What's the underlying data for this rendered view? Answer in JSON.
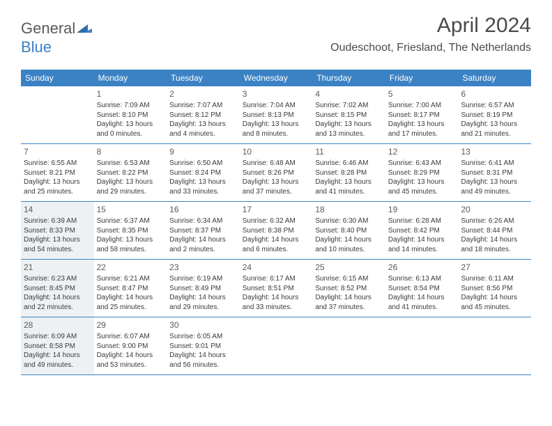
{
  "brand": {
    "part1": "General",
    "part2": "Blue"
  },
  "title": "April 2024",
  "location": "Oudeschoot, Friesland, The Netherlands",
  "colors": {
    "header_bg": "#3b82c4",
    "header_text": "#ffffff",
    "body_text": "#3a3a3a",
    "divider": "#3b82c4",
    "shaded_bg": "#eef1f3",
    "page_bg": "#ffffff",
    "title_text": "#4a4a4a"
  },
  "typography": {
    "title_fontsize": 30,
    "location_fontsize": 16,
    "header_fontsize": 12,
    "daynum_fontsize": 12,
    "body_fontsize": 10
  },
  "day_headers": [
    "Sunday",
    "Monday",
    "Tuesday",
    "Wednesday",
    "Thursday",
    "Friday",
    "Saturday"
  ],
  "weeks": [
    [
      {
        "num": "",
        "sunrise": "",
        "sunset": "",
        "daylight1": "",
        "daylight2": "",
        "shaded": false
      },
      {
        "num": "1",
        "sunrise": "Sunrise: 7:09 AM",
        "sunset": "Sunset: 8:10 PM",
        "daylight1": "Daylight: 13 hours",
        "daylight2": "and 0 minutes.",
        "shaded": false
      },
      {
        "num": "2",
        "sunrise": "Sunrise: 7:07 AM",
        "sunset": "Sunset: 8:12 PM",
        "daylight1": "Daylight: 13 hours",
        "daylight2": "and 4 minutes.",
        "shaded": false
      },
      {
        "num": "3",
        "sunrise": "Sunrise: 7:04 AM",
        "sunset": "Sunset: 8:13 PM",
        "daylight1": "Daylight: 13 hours",
        "daylight2": "and 8 minutes.",
        "shaded": false
      },
      {
        "num": "4",
        "sunrise": "Sunrise: 7:02 AM",
        "sunset": "Sunset: 8:15 PM",
        "daylight1": "Daylight: 13 hours",
        "daylight2": "and 13 minutes.",
        "shaded": false
      },
      {
        "num": "5",
        "sunrise": "Sunrise: 7:00 AM",
        "sunset": "Sunset: 8:17 PM",
        "daylight1": "Daylight: 13 hours",
        "daylight2": "and 17 minutes.",
        "shaded": false
      },
      {
        "num": "6",
        "sunrise": "Sunrise: 6:57 AM",
        "sunset": "Sunset: 8:19 PM",
        "daylight1": "Daylight: 13 hours",
        "daylight2": "and 21 minutes.",
        "shaded": false
      }
    ],
    [
      {
        "num": "7",
        "sunrise": "Sunrise: 6:55 AM",
        "sunset": "Sunset: 8:21 PM",
        "daylight1": "Daylight: 13 hours",
        "daylight2": "and 25 minutes.",
        "shaded": false
      },
      {
        "num": "8",
        "sunrise": "Sunrise: 6:53 AM",
        "sunset": "Sunset: 8:22 PM",
        "daylight1": "Daylight: 13 hours",
        "daylight2": "and 29 minutes.",
        "shaded": false
      },
      {
        "num": "9",
        "sunrise": "Sunrise: 6:50 AM",
        "sunset": "Sunset: 8:24 PM",
        "daylight1": "Daylight: 13 hours",
        "daylight2": "and 33 minutes.",
        "shaded": false
      },
      {
        "num": "10",
        "sunrise": "Sunrise: 6:48 AM",
        "sunset": "Sunset: 8:26 PM",
        "daylight1": "Daylight: 13 hours",
        "daylight2": "and 37 minutes.",
        "shaded": false
      },
      {
        "num": "11",
        "sunrise": "Sunrise: 6:46 AM",
        "sunset": "Sunset: 8:28 PM",
        "daylight1": "Daylight: 13 hours",
        "daylight2": "and 41 minutes.",
        "shaded": false
      },
      {
        "num": "12",
        "sunrise": "Sunrise: 6:43 AM",
        "sunset": "Sunset: 8:29 PM",
        "daylight1": "Daylight: 13 hours",
        "daylight2": "and 45 minutes.",
        "shaded": false
      },
      {
        "num": "13",
        "sunrise": "Sunrise: 6:41 AM",
        "sunset": "Sunset: 8:31 PM",
        "daylight1": "Daylight: 13 hours",
        "daylight2": "and 49 minutes.",
        "shaded": false
      }
    ],
    [
      {
        "num": "14",
        "sunrise": "Sunrise: 6:39 AM",
        "sunset": "Sunset: 8:33 PM",
        "daylight1": "Daylight: 13 hours",
        "daylight2": "and 54 minutes.",
        "shaded": true
      },
      {
        "num": "15",
        "sunrise": "Sunrise: 6:37 AM",
        "sunset": "Sunset: 8:35 PM",
        "daylight1": "Daylight: 13 hours",
        "daylight2": "and 58 minutes.",
        "shaded": false
      },
      {
        "num": "16",
        "sunrise": "Sunrise: 6:34 AM",
        "sunset": "Sunset: 8:37 PM",
        "daylight1": "Daylight: 14 hours",
        "daylight2": "and 2 minutes.",
        "shaded": false
      },
      {
        "num": "17",
        "sunrise": "Sunrise: 6:32 AM",
        "sunset": "Sunset: 8:38 PM",
        "daylight1": "Daylight: 14 hours",
        "daylight2": "and 6 minutes.",
        "shaded": false
      },
      {
        "num": "18",
        "sunrise": "Sunrise: 6:30 AM",
        "sunset": "Sunset: 8:40 PM",
        "daylight1": "Daylight: 14 hours",
        "daylight2": "and 10 minutes.",
        "shaded": false
      },
      {
        "num": "19",
        "sunrise": "Sunrise: 6:28 AM",
        "sunset": "Sunset: 8:42 PM",
        "daylight1": "Daylight: 14 hours",
        "daylight2": "and 14 minutes.",
        "shaded": false
      },
      {
        "num": "20",
        "sunrise": "Sunrise: 6:26 AM",
        "sunset": "Sunset: 8:44 PM",
        "daylight1": "Daylight: 14 hours",
        "daylight2": "and 18 minutes.",
        "shaded": false
      }
    ],
    [
      {
        "num": "21",
        "sunrise": "Sunrise: 6:23 AM",
        "sunset": "Sunset: 8:45 PM",
        "daylight1": "Daylight: 14 hours",
        "daylight2": "and 22 minutes.",
        "shaded": true
      },
      {
        "num": "22",
        "sunrise": "Sunrise: 6:21 AM",
        "sunset": "Sunset: 8:47 PM",
        "daylight1": "Daylight: 14 hours",
        "daylight2": "and 25 minutes.",
        "shaded": false
      },
      {
        "num": "23",
        "sunrise": "Sunrise: 6:19 AM",
        "sunset": "Sunset: 8:49 PM",
        "daylight1": "Daylight: 14 hours",
        "daylight2": "and 29 minutes.",
        "shaded": false
      },
      {
        "num": "24",
        "sunrise": "Sunrise: 6:17 AM",
        "sunset": "Sunset: 8:51 PM",
        "daylight1": "Daylight: 14 hours",
        "daylight2": "and 33 minutes.",
        "shaded": false
      },
      {
        "num": "25",
        "sunrise": "Sunrise: 6:15 AM",
        "sunset": "Sunset: 8:52 PM",
        "daylight1": "Daylight: 14 hours",
        "daylight2": "and 37 minutes.",
        "shaded": false
      },
      {
        "num": "26",
        "sunrise": "Sunrise: 6:13 AM",
        "sunset": "Sunset: 8:54 PM",
        "daylight1": "Daylight: 14 hours",
        "daylight2": "and 41 minutes.",
        "shaded": false
      },
      {
        "num": "27",
        "sunrise": "Sunrise: 6:11 AM",
        "sunset": "Sunset: 8:56 PM",
        "daylight1": "Daylight: 14 hours",
        "daylight2": "and 45 minutes.",
        "shaded": false
      }
    ],
    [
      {
        "num": "28",
        "sunrise": "Sunrise: 6:09 AM",
        "sunset": "Sunset: 8:58 PM",
        "daylight1": "Daylight: 14 hours",
        "daylight2": "and 49 minutes.",
        "shaded": true
      },
      {
        "num": "29",
        "sunrise": "Sunrise: 6:07 AM",
        "sunset": "Sunset: 9:00 PM",
        "daylight1": "Daylight: 14 hours",
        "daylight2": "and 53 minutes.",
        "shaded": false
      },
      {
        "num": "30",
        "sunrise": "Sunrise: 6:05 AM",
        "sunset": "Sunset: 9:01 PM",
        "daylight1": "Daylight: 14 hours",
        "daylight2": "and 56 minutes.",
        "shaded": false
      },
      {
        "num": "",
        "sunrise": "",
        "sunset": "",
        "daylight1": "",
        "daylight2": "",
        "shaded": false
      },
      {
        "num": "",
        "sunrise": "",
        "sunset": "",
        "daylight1": "",
        "daylight2": "",
        "shaded": false
      },
      {
        "num": "",
        "sunrise": "",
        "sunset": "",
        "daylight1": "",
        "daylight2": "",
        "shaded": false
      },
      {
        "num": "",
        "sunrise": "",
        "sunset": "",
        "daylight1": "",
        "daylight2": "",
        "shaded": false
      }
    ]
  ]
}
